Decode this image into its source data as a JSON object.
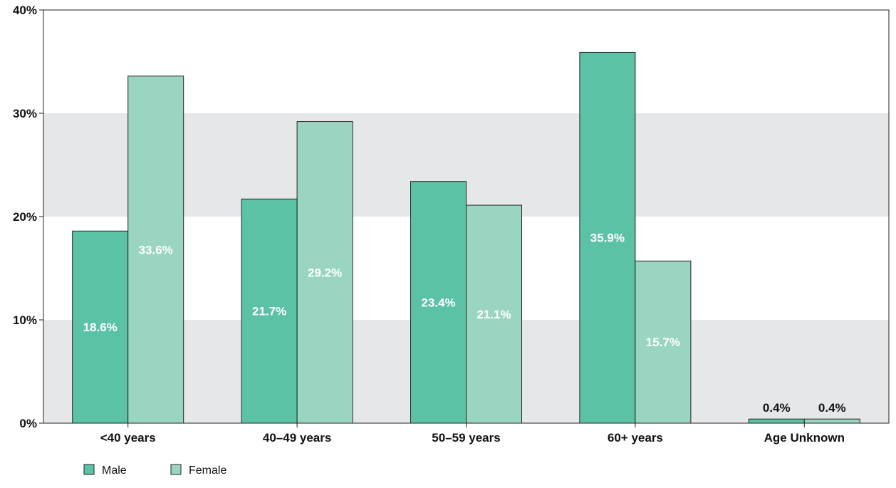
{
  "chart_data": {
    "type": "bar",
    "title": "",
    "xlabel": "",
    "ylabel": "",
    "categories": [
      "<40 years",
      "40–49 years",
      "50–59 years",
      "60+ years",
      "Age Unknown"
    ],
    "series": [
      {
        "name": "Male",
        "color": "#5bc2a5",
        "values": [
          18.6,
          21.7,
          23.4,
          35.9,
          0.4
        ],
        "labels": [
          "18.6%",
          "21.7%",
          "23.4%",
          "35.9%",
          "0.4%"
        ]
      },
      {
        "name": "Female",
        "color": "#9ad5c1",
        "values": [
          33.6,
          29.2,
          21.1,
          15.7,
          0.4
        ],
        "labels": [
          "33.6%",
          "29.2%",
          "21.1%",
          "15.7%",
          "0.4%"
        ]
      }
    ],
    "ylim": [
      0,
      40
    ],
    "yticks": [
      0,
      10,
      20,
      30,
      40
    ],
    "ytick_labels": [
      "0%",
      "10%",
      "20%",
      "30%",
      "40%"
    ],
    "grid": "alternating bands",
    "band_color": "#e6e7e8",
    "legend_position": "bottom-left"
  }
}
